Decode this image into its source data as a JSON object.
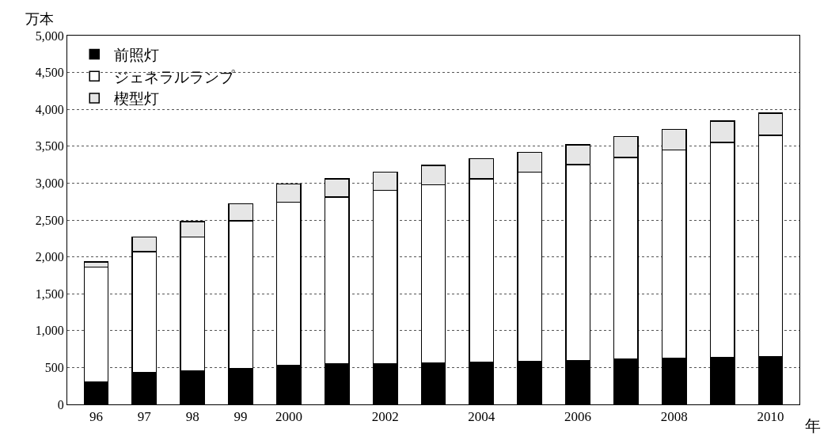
{
  "chart_data": {
    "type": "bar",
    "stacked": true,
    "xlabel": "年",
    "ylabel": "万本",
    "categories": [
      "96",
      "97",
      "98",
      "99",
      "2000",
      null,
      "2002",
      null,
      "2004",
      null,
      "2006",
      null,
      "2008",
      null,
      "2010"
    ],
    "series": [
      {
        "name": "前照灯",
        "color": "#000000",
        "values": [
          300,
          430,
          450,
          490,
          530,
          550,
          550,
          560,
          570,
          580,
          590,
          610,
          620,
          640,
          650
        ]
      },
      {
        "name": "ジェネラルランプ",
        "color": "#ffffff",
        "values": [
          1560,
          1640,
          1820,
          2000,
          2210,
          2260,
          2350,
          2420,
          2490,
          2570,
          2660,
          2740,
          2830,
          2910,
          3000
        ]
      },
      {
        "name": "楔型灯",
        "color": "#e6e6e6",
        "values": [
          70,
          200,
          210,
          230,
          250,
          250,
          250,
          260,
          270,
          270,
          270,
          280,
          280,
          290,
          300
        ]
      }
    ],
    "ylim": [
      0,
      5000
    ],
    "yticks": [
      0,
      500,
      {
        "value": 1000,
        "label": "1,000"
      },
      {
        "value": 1500,
        "label": "1,500"
      },
      {
        "value": 2000,
        "label": "2,000"
      },
      {
        "value": 2500,
        "label": "2,500"
      },
      {
        "value": 3000,
        "label": "3,000"
      },
      {
        "value": 3500,
        "label": "3,500"
      },
      {
        "value": 4000,
        "label": "4,000"
      },
      {
        "value": 4500,
        "label": "4,500"
      },
      {
        "value": 5000,
        "label": "5,000"
      }
    ],
    "grid": "y",
    "legend": "top left"
  }
}
